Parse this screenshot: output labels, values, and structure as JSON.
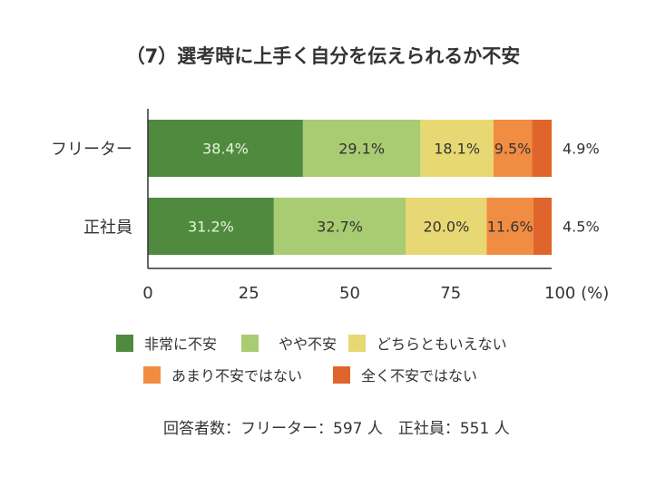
{
  "chart_data": {
    "type": "bar",
    "orientation": "horizontal",
    "stacked": true,
    "title": "（7）選考時に上手く自分を伝えられるか不安",
    "categories": [
      "フリーター",
      "正社員"
    ],
    "series": [
      {
        "name": "非常に不安",
        "values": [
          38.4,
          31.2
        ],
        "color": "#4f8a3f",
        "label_color": "#e8f2dc"
      },
      {
        "name": "やや不安",
        "values": [
          29.1,
          32.7
        ],
        "color": "#a9cb72",
        "label_color": "#333333"
      },
      {
        "name": "どちらともいえない",
        "values": [
          18.1,
          20.0
        ],
        "color": "#e8d874",
        "label_color": "#333333"
      },
      {
        "name": "あまり不安ではない",
        "values": [
          9.5,
          11.6
        ],
        "color": "#f18c43",
        "label_color": "#333333"
      },
      {
        "name": "全く不安ではない",
        "values": [
          4.9,
          4.5
        ],
        "color": "#e0652d",
        "label_color": "#333333"
      }
    ],
    "data_labels": [
      [
        "38.4%",
        "29.1%",
        "18.1%",
        "9.5%",
        "4.9%"
      ],
      [
        "31.2%",
        "32.7%",
        "20.0%",
        "11.6%",
        "4.5%"
      ]
    ],
    "xlim": [
      0,
      100
    ],
    "xticks": [
      "0",
      "25",
      "50",
      "75",
      "100 (%)"
    ],
    "grid": false,
    "legend_placement": "bottom",
    "note": "回答者数：フリーター：597 人　正社員：551 人"
  }
}
